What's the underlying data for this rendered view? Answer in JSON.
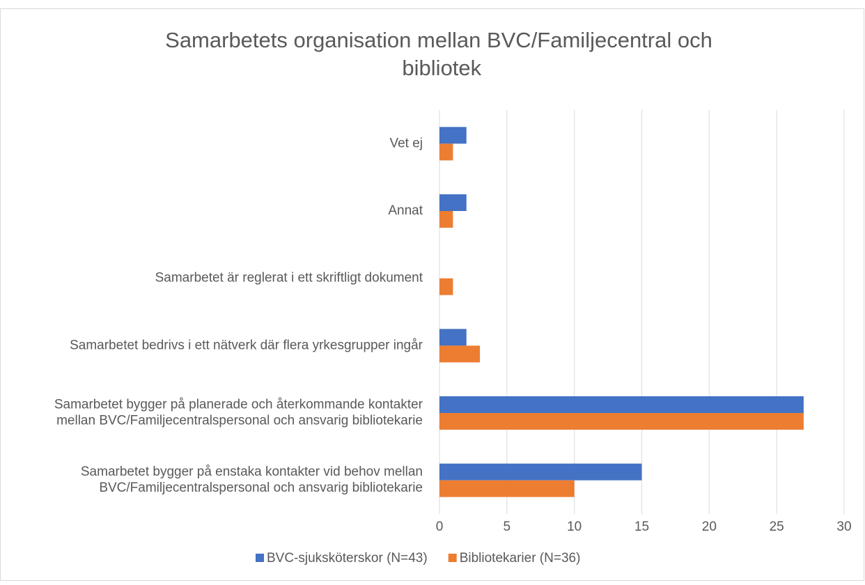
{
  "chart_data": {
    "type": "hbar",
    "title": "Samarbetets organisation mellan BVC/Familjecentral och bibliotek",
    "categories": [
      "Vet ej",
      "Annat",
      "Samarbetet är reglerat i ett skriftligt dokument",
      "Samarbetet bedrivs i ett nätverk där flera yrkesgrupper ingår",
      "Samarbetet bygger på planerade och återkommande kontakter mellan BVC/Familjecentralspersonal och ansvarig bibliotekarie",
      "Samarbetet bygger på enstaka kontakter vid behov mellan BVC/Familjecentralspersonal och ansvarig bibliotekarie"
    ],
    "series": [
      {
        "name": "BVC-sjuksköterskor (N=43)",
        "color": "#4472c4",
        "values": [
          2,
          2,
          0,
          2,
          27,
          15
        ]
      },
      {
        "name": "Bibliotekarier (N=36)",
        "color": "#ed7d31",
        "values": [
          1,
          1,
          1,
          3,
          27,
          10
        ]
      }
    ],
    "xlim": [
      0,
      30
    ],
    "xticks": [
      0,
      5,
      10,
      15,
      20,
      25,
      30
    ],
    "grid": true,
    "legend": "bottom"
  }
}
